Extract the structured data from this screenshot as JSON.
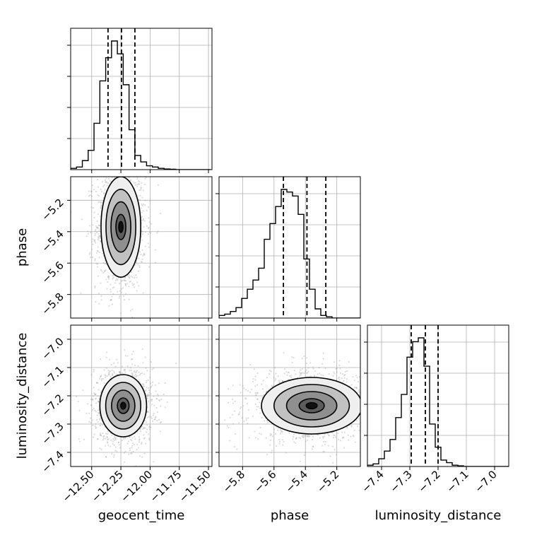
{
  "chart_data": {
    "type": "corner",
    "parameters": [
      {
        "name": "geocent_time",
        "label": "geocent_time",
        "range": [
          -12.68,
          -11.47
        ],
        "ticks": [
          -12.5,
          -12.25,
          -12.0,
          -11.75,
          -11.5
        ],
        "tick_labels": [
          "−12.50",
          "−12.25",
          "−12.00",
          "−11.75",
          "−11.50"
        ],
        "quantiles": [
          -12.36,
          -12.245,
          -12.13
        ],
        "hist_bin_edges": [
          -12.68,
          -12.63,
          -12.58,
          -12.53,
          -12.48,
          -12.43,
          -12.38,
          -12.33,
          -12.28,
          -12.23,
          -12.18,
          -12.13,
          -12.08,
          -12.03,
          -11.98,
          -11.93,
          -11.88,
          -11.83,
          -11.78,
          -11.73,
          -11.68,
          -11.63,
          -11.58,
          -11.53,
          -11.48
        ],
        "hist_counts": [
          0.01,
          0.02,
          0.07,
          0.15,
          0.36,
          0.69,
          0.87,
          1.0,
          0.9,
          0.66,
          0.31,
          0.11,
          0.06,
          0.03,
          0.02,
          0.01,
          0.005,
          0.003,
          0,
          0,
          0,
          0,
          0,
          0
        ]
      },
      {
        "name": "phase",
        "label": "phase",
        "range": [
          -5.95,
          -5.05
        ],
        "ticks": [
          -5.8,
          -5.6,
          -5.4,
          -5.2
        ],
        "tick_labels": [
          "−5.8",
          "−5.6",
          "−5.4",
          "−5.2"
        ],
        "quantiles": [
          -5.54,
          -5.39,
          -5.27
        ],
        "hist_bin_edges": [
          -5.95,
          -5.914,
          -5.878,
          -5.842,
          -5.806,
          -5.77,
          -5.734,
          -5.698,
          -5.662,
          -5.626,
          -5.59,
          -5.554,
          -5.518,
          -5.482,
          -5.446,
          -5.41,
          -5.374,
          -5.338,
          -5.302,
          -5.266,
          -5.23,
          -5.194,
          -5.158,
          -5.122,
          -5.086,
          -5.05
        ],
        "hist_counts": [
          0.02,
          0.03,
          0.05,
          0.08,
          0.15,
          0.22,
          0.29,
          0.38,
          0.6,
          0.72,
          0.85,
          0.98,
          0.96,
          0.93,
          0.79,
          0.45,
          0.22,
          0.07,
          0.02,
          0.01,
          0,
          0,
          0,
          0,
          0
        ]
      },
      {
        "name": "luminosity_distance",
        "label": "luminosity_distance",
        "range": [
          -7.45,
          -6.95
        ],
        "ticks": [
          -7.4,
          -7.3,
          -7.2,
          -7.1,
          -7.0
        ],
        "tick_labels": [
          "−7.4",
          "−7.3",
          "−7.2",
          "−7.1",
          "−7.0"
        ],
        "quantiles": [
          -7.295,
          -7.245,
          -7.2
        ],
        "hist_bin_edges": [
          -7.45,
          -7.43,
          -7.41,
          -7.39,
          -7.37,
          -7.35,
          -7.33,
          -7.31,
          -7.29,
          -7.27,
          -7.25,
          -7.23,
          -7.21,
          -7.19,
          -7.17,
          -7.15,
          -7.13,
          -7.11,
          -7.09,
          -7.07,
          -7.05,
          -7.03,
          -7.01,
          -6.99,
          -6.97,
          -6.95
        ],
        "hist_counts": [
          0.01,
          0.02,
          0.06,
          0.12,
          0.21,
          0.38,
          0.56,
          0.85,
          0.97,
          1.0,
          0.78,
          0.33,
          0.15,
          0.05,
          0.03,
          0.01,
          0.005,
          0,
          0,
          0,
          0,
          0,
          0,
          0,
          0
        ]
      }
    ],
    "panels_2d": [
      {
        "x": "geocent_time",
        "y": "phase",
        "peak": [
          -12.25,
          -5.37
        ],
        "spread": [
          0.085,
          0.16
        ],
        "contour_levels": [
          0.5,
          1.0,
          1.5,
          2.0
        ]
      },
      {
        "x": "geocent_time",
        "y": "luminosity_distance",
        "peak": [
          -12.23,
          -7.235
        ],
        "spread": [
          0.1,
          0.055
        ],
        "contour_levels": [
          0.5,
          1.0,
          1.5,
          2.0
        ]
      },
      {
        "x": "phase",
        "y": "luminosity_distance",
        "peak": [
          -5.36,
          -7.235
        ],
        "spread": [
          0.16,
          0.05
        ],
        "contour_levels": [
          0.5,
          1.0,
          1.5,
          2.0
        ]
      }
    ],
    "grid": true,
    "colors": {
      "line": "#000000",
      "grid": "#b0b0b0",
      "points": "#999999",
      "fill": "#333333"
    }
  }
}
